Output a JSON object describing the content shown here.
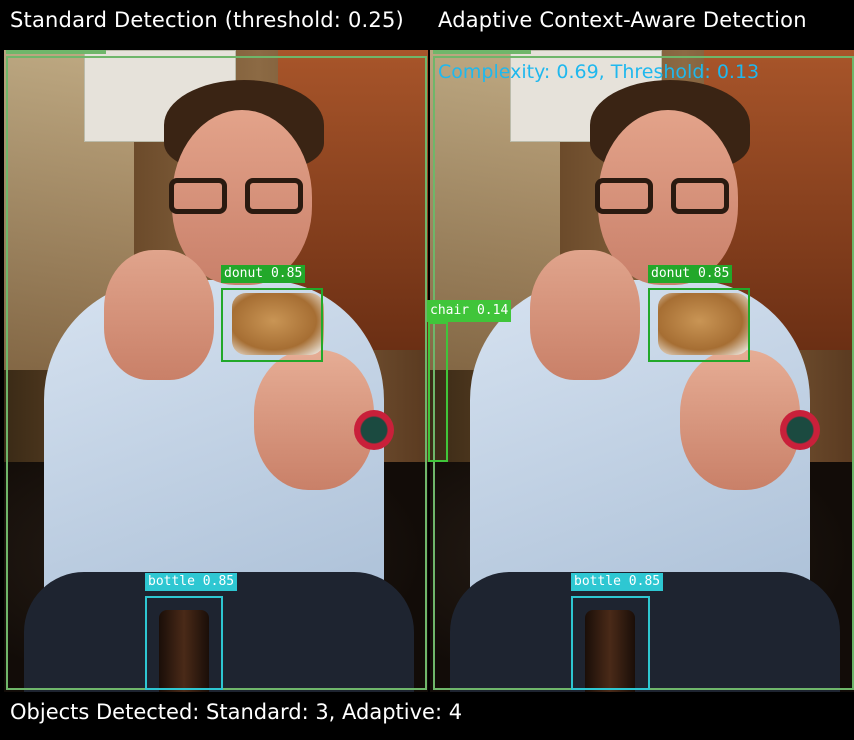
{
  "titles": {
    "left": "Standard Detection (threshold: 0.25)",
    "right": "Adaptive Context-Aware Detection"
  },
  "adaptive": {
    "complexity_text": "Complexity: 0.69, Threshold: 0.13"
  },
  "summary": "Objects Detected: Standard: 3, Adaptive: 4",
  "colors": {
    "person_box": "#6fb66a",
    "donut_box": "#22a82a",
    "chair_box": "#40c53a",
    "bottle_box": "#2ec7d2",
    "complexity_text": "#1fb8ee"
  },
  "standard_detections": [
    {
      "label": "donut 0.85",
      "class": "donut",
      "score": 0.85
    },
    {
      "label": "bottle 0.85",
      "class": "bottle",
      "score": 0.85
    }
  ],
  "adaptive_detections": [
    {
      "label": "donut 0.85",
      "class": "donut",
      "score": 0.85
    },
    {
      "label": "chair 0.14",
      "class": "chair",
      "score": 0.14
    },
    {
      "label": "bottle 0.85",
      "class": "bottle",
      "score": 0.85
    }
  ]
}
